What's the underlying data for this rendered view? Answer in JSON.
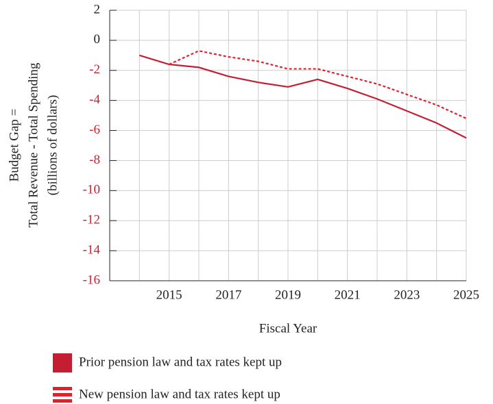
{
  "chart_data": {
    "type": "line",
    "ylabel": [
      "Budget Gap =",
      "Total Revenue - Total Spending",
      "(billions of dollars)"
    ],
    "xlabel": "Fiscal Year",
    "x": [
      2014,
      2015,
      2016,
      2017,
      2018,
      2019,
      2020,
      2021,
      2022,
      2023,
      2024,
      2025
    ],
    "series": [
      {
        "name": "Prior pension law and tax rates kept up",
        "color": "#c41e32",
        "dash": false,
        "values": [
          -1.0,
          -1.6,
          -1.8,
          -2.4,
          -2.8,
          -3.1,
          -2.6,
          -3.2,
          -3.9,
          -4.7,
          -5.5,
          -6.5
        ]
      },
      {
        "name": "New pension law and tax rates kept up",
        "color": "#e0202a",
        "dash": true,
        "values": [
          null,
          -1.6,
          -0.7,
          -1.1,
          -1.4,
          -1.9,
          -1.9,
          -2.4,
          -2.9,
          -3.6,
          -4.3,
          -5.2
        ]
      }
    ],
    "xlim": [
      2013,
      2025
    ],
    "xticks": [
      2015,
      2017,
      2019,
      2021,
      2023,
      2025
    ],
    "xminor": [
      2014,
      2016,
      2018,
      2020,
      2022,
      2024
    ],
    "ylim": [
      -16,
      2
    ],
    "yticks": [
      -16,
      -14,
      -12,
      -10,
      -8,
      -6,
      -4,
      -2,
      0,
      2
    ],
    "negative_tick_color": "#d42030",
    "grid": true
  }
}
